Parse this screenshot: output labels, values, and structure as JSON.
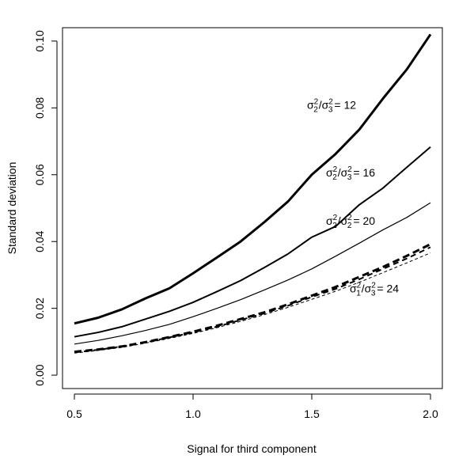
{
  "chart_data": {
    "type": "line",
    "title": "",
    "xlabel": "Signal for third component",
    "ylabel": "Standard deviation",
    "xlim": [
      0.45,
      2.05
    ],
    "ylim": [
      -0.004,
      0.104
    ],
    "xticks": [
      0.5,
      1.0,
      1.5,
      2.0
    ],
    "xtick_labels": [
      "0.5",
      "1.0",
      "1.5",
      "2.0"
    ],
    "yticks": [
      0.0,
      0.02,
      0.04,
      0.06,
      0.08,
      0.1
    ],
    "ytick_labels": [
      "0.00",
      "0.02",
      "0.04",
      "0.06",
      "0.08",
      "0.10"
    ],
    "grid": false,
    "x": [
      0.5,
      0.6,
      0.7,
      0.8,
      0.9,
      1.0,
      1.1,
      1.2,
      1.3,
      1.4,
      1.5,
      1.6,
      1.7,
      1.8,
      1.9,
      2.0
    ],
    "series": [
      {
        "values": [
          0.0155,
          0.0172,
          0.0197,
          0.023,
          0.026,
          0.0305,
          0.0352,
          0.04,
          0.0458,
          0.052,
          0.06,
          0.0662,
          0.0735,
          0.0828,
          0.0915,
          0.102
        ],
        "stroke": "#000000",
        "width": 3,
        "dash": ""
      },
      {
        "values": [
          0.0115,
          0.0128,
          0.0145,
          0.0168,
          0.0191,
          0.0218,
          0.025,
          0.0283,
          0.0322,
          0.0363,
          0.0413,
          0.0445,
          0.051,
          0.056,
          0.0622,
          0.0683
        ],
        "stroke": "#000000",
        "width": 2,
        "dash": ""
      },
      {
        "values": [
          0.0093,
          0.0104,
          0.0118,
          0.0134,
          0.0152,
          0.0175,
          0.02,
          0.0226,
          0.0255,
          0.0285,
          0.0318,
          0.0356,
          0.0395,
          0.0435,
          0.0472,
          0.0516
        ],
        "stroke": "#000000",
        "width": 1.2,
        "dash": ""
      },
      {
        "values": [
          0.007,
          0.0077,
          0.0086,
          0.0099,
          0.0114,
          0.013,
          0.0148,
          0.0168,
          0.0188,
          0.0212,
          0.0238,
          0.0264,
          0.0294,
          0.0324,
          0.0357,
          0.0392
        ],
        "stroke": "#000000",
        "width": 3,
        "dash": "9,5"
      },
      {
        "values": [
          0.0068,
          0.0076,
          0.0086,
          0.0098,
          0.0113,
          0.0128,
          0.0145,
          0.0165,
          0.0185,
          0.0208,
          0.0234,
          0.0258,
          0.0287,
          0.0318,
          0.0349,
          0.0383
        ],
        "stroke": "#000000",
        "width": 2,
        "dash": "7,5"
      },
      {
        "values": [
          0.0066,
          0.0074,
          0.0083,
          0.0096,
          0.011,
          0.0125,
          0.0142,
          0.0161,
          0.0181,
          0.0203,
          0.0227,
          0.0251,
          0.0278,
          0.0307,
          0.0336,
          0.0366
        ],
        "stroke": "#000000",
        "width": 1,
        "dash": "4,3"
      }
    ],
    "annotations": [
      {
        "sigma_top_sub": "2",
        "sigma_bottom_sub": "3",
        "value": "= 12",
        "x": 1.48,
        "y": 0.0797
      },
      {
        "sigma_top_sub": "2",
        "sigma_bottom_sub": "3",
        "value": "= 16",
        "x": 1.56,
        "y": 0.0595
      },
      {
        "sigma_top_sub": "2",
        "sigma_bottom_sub": "2",
        "value": "= 20",
        "x": 1.56,
        "y": 0.045
      },
      {
        "sigma_top_sub": "1",
        "sigma_bottom_sub": "3",
        "value": "= 24",
        "x": 1.66,
        "y": 0.0248
      }
    ]
  }
}
